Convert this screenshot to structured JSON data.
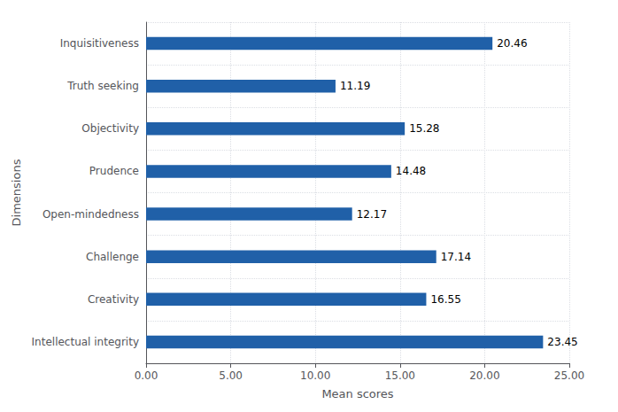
{
  "chart_data": {
    "type": "bar",
    "orientation": "horizontal",
    "categories": [
      "Inquisitiveness",
      "Truth seeking",
      "Objectivity",
      "Prudence",
      "Open-mindedness",
      "Challenge",
      "Creativity",
      "Intellectual integrity"
    ],
    "values": [
      20.46,
      11.19,
      15.28,
      14.48,
      12.17,
      17.14,
      16.55,
      23.45
    ],
    "color": "#2060A8",
    "xlabel": "Mean scores",
    "ylabel": "Dimensions",
    "xlim": [
      0,
      25.0
    ],
    "xticks": [
      {
        "value": 0.0,
        "label": "0.00"
      },
      {
        "value": 5.0,
        "label": "5.00"
      },
      {
        "value": 10.0,
        "label": "10.00"
      },
      {
        "value": 15.0,
        "label": "15.00"
      },
      {
        "value": 20.0,
        "label": "20.00"
      },
      {
        "value": 25.0,
        "label": "25.00"
      }
    ],
    "data_labels": true,
    "grid": true
  }
}
